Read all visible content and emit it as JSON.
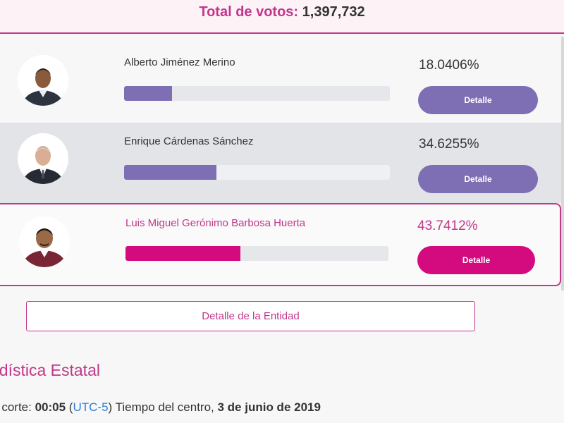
{
  "header": {
    "total_label": "Total de votos:",
    "total_value": "1,397,732"
  },
  "candidates": [
    {
      "name": "Alberto Jiménez Merino",
      "percentage": "18.0406%",
      "bar_fraction": 0.180406,
      "button_label": "Detalle",
      "bar_color": "#7e6eb4"
    },
    {
      "name": "Enrique Cárdenas Sánchez",
      "percentage": "34.6255%",
      "bar_fraction": 0.346255,
      "button_label": "Detalle",
      "bar_color": "#7e6eb4"
    },
    {
      "name": "Luis Miguel Gerónimo Barbosa Huerta",
      "percentage": "43.7412%",
      "bar_fraction": 0.437412,
      "button_label": "Detalle",
      "bar_color": "#d40b7f"
    }
  ],
  "entity_button": "Detalle de la Entidad",
  "stats": {
    "title": "adística Estatal",
    "cut_prefix": "mo corte: ",
    "cut_time": "00:05",
    "cut_open": " (",
    "cut_tz": "UTC-5",
    "cut_mid": ") Tiempo del centro, ",
    "cut_date": "3 de junio de 2019"
  },
  "colors": {
    "accent": "#c2378b",
    "bar_purple": "#7e6eb4",
    "bar_magenta": "#d40b7f"
  }
}
